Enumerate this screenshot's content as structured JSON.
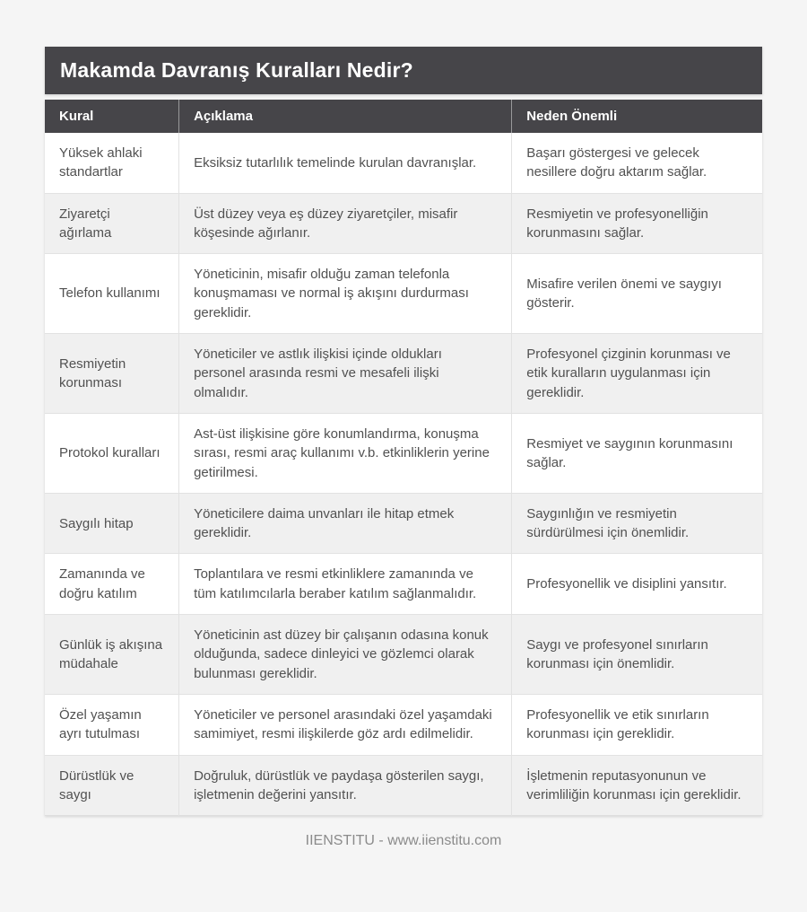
{
  "header": {
    "title": "Makamda Davranış Kuralları Nedir?"
  },
  "table": {
    "columns": [
      "Kural",
      "Açıklama",
      "Neden Önemli"
    ],
    "rows": [
      {
        "kural": "Yüksek ahlaki standartlar",
        "aciklama": "Eksiksiz tutarlılık temelinde kurulan davranışlar.",
        "neden": "Başarı göstergesi ve gelecek nesillere doğru aktarım sağlar."
      },
      {
        "kural": "Ziyaretçi ağırlama",
        "aciklama": "Üst düzey veya eş düzey ziyaretçiler, misafir köşesinde ağırlanır.",
        "neden": "Resmiyetin ve profesyonelliğin korunmasını sağlar."
      },
      {
        "kural": "Telefon kullanımı",
        "aciklama": "Yöneticinin, misafir olduğu zaman telefonla konuşmaması ve normal iş akışını durdurması gereklidir.",
        "neden": "Misafire verilen önemi ve saygıyı gösterir."
      },
      {
        "kural": "Resmiyetin korunması",
        "aciklama": "Yöneticiler ve astlık ilişkisi içinde oldukları personel arasında resmi ve mesafeli ilişki olmalıdır.",
        "neden": "Profesyonel çizginin korunması ve etik kuralların uygulanması için gereklidir."
      },
      {
        "kural": "Protokol kuralları",
        "aciklama": "Ast-üst ilişkisine göre konumlandırma, konuşma sırası, resmi araç kullanımı v.b. etkinliklerin yerine getirilmesi.",
        "neden": "Resmiyet ve saygının korunmasını sağlar."
      },
      {
        "kural": "Saygılı hitap",
        "aciklama": "Yöneticilere daima unvanları ile hitap etmek gereklidir.",
        "neden": "Saygınlığın ve resmiyetin sürdürülmesi için önemlidir."
      },
      {
        "kural": "Zamanında ve doğru katılım",
        "aciklama": "Toplantılara ve resmi etkinliklere zamanında ve tüm katılımcılarla beraber katılım sağlanmalıdır.",
        "neden": "Profesyonellik ve disiplini yansıtır."
      },
      {
        "kural": "Günlük iş akışına müdahale",
        "aciklama": "Yöneticinin ast düzey bir çalışanın odasına konuk olduğunda, sadece dinleyici ve gözlemci olarak bulunması gereklidir.",
        "neden": "Saygı ve profesyonel sınırların korunması için önemlidir."
      },
      {
        "kural": "Özel yaşamın ayrı tutulması",
        "aciklama": "Yöneticiler ve personel arasındaki özel yaşamdaki samimiyet, resmi ilişkilerde göz ardı edilmelidir.",
        "neden": "Profesyonellik ve etik sınırların korunması için gereklidir."
      },
      {
        "kural": "Dürüstlük ve saygı",
        "aciklama": "Doğruluk, dürüstlük ve paydaşa gösterilen saygı, işletmenin değerini yansıtır.",
        "neden": "İşletmenin reputasyonunun ve verimliliğin korunması için gereklidir."
      }
    ]
  },
  "footer": {
    "credit": "IIENSTITU - www.iienstitu.com"
  },
  "colors": {
    "header_bg": "#464549",
    "header_text": "#ffffff",
    "row_stripe": "#f0f0f0",
    "body_text": "#515151",
    "page_bg": "#f5f5f5",
    "footer_text": "#8b8b8b"
  }
}
